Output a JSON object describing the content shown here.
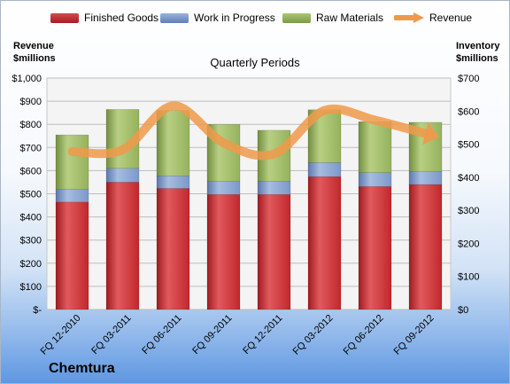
{
  "company": "Chemtura",
  "chart_data": {
    "type": "bar",
    "stacked": true,
    "title": "Quarterly Periods",
    "categories": [
      "FQ 12-2010",
      "FQ 03-2011",
      "FQ 06-2011",
      "FQ 09-2011",
      "FQ 12-2011",
      "FQ 03-2012",
      "FQ 06-2012",
      "FQ 09-2012"
    ],
    "left_axis": {
      "label_line1": "Revenue",
      "label_line2": "$millions",
      "ylim": [
        0,
        1000
      ],
      "ticks": [
        "$-",
        "$100",
        "$200",
        "$300",
        "$400",
        "$500",
        "$600",
        "$700",
        "$800",
        "$900",
        "$1,000"
      ]
    },
    "right_axis": {
      "label_line1": "Inventory",
      "label_line2": "$millions",
      "ylim": [
        0,
        700
      ],
      "ticks": [
        "$0",
        "$100",
        "$200",
        "$300",
        "$400",
        "$500",
        "$600",
        "$700"
      ]
    },
    "series": [
      {
        "name": "Finished Goods",
        "axis": "right",
        "color": "#c0282c",
        "values": [
          325,
          385,
          366,
          348,
          348,
          402,
          372,
          378
        ]
      },
      {
        "name": "Work in Progress",
        "axis": "right",
        "color": "#7b98c8",
        "values": [
          38,
          42,
          38,
          40,
          40,
          42,
          42,
          40
        ]
      },
      {
        "name": "Raw Materials",
        "axis": "right",
        "color": "#95b25c",
        "values": [
          165,
          178,
          198,
          172,
          154,
          160,
          154,
          148
        ]
      },
      {
        "name": "Revenue",
        "axis": "left",
        "type": "line",
        "color": "#f0994a",
        "values": [
          682,
          690,
          880,
          720,
          672,
          860,
          818,
          760
        ]
      }
    ],
    "grid": true,
    "legend": "top"
  }
}
